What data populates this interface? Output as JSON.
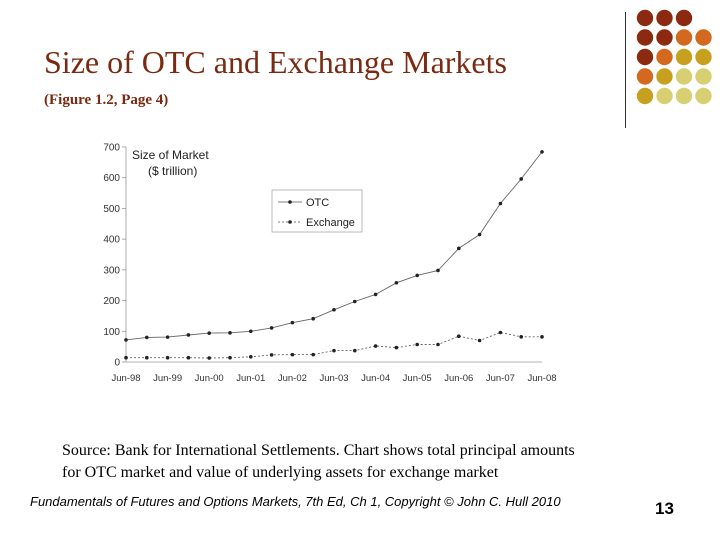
{
  "slide": {
    "title": "Size of OTC and Exchange Markets",
    "subtitle": "(Figure 1.2, Page 4)",
    "source_line1": "Source: Bank for International Settlements. Chart shows total principal amounts",
    "source_line2": "for OTC market and value of underlying assets for exchange market",
    "footer": "Fundamentals of Futures and Options Markets, 7th Ed, Ch 1, Copyright © John C. Hull 2010",
    "page_number": "13"
  },
  "colors": {
    "title": "#7a2a10",
    "dot_dark": "#8b2a10",
    "dot_orange": "#d2691e",
    "dot_gold": "#c8a020",
    "dot_light": "#d8cf72"
  },
  "decoration": {
    "dot_grid": [
      [
        "dot_dark",
        "dot_dark",
        "dot_dark",
        null
      ],
      [
        "dot_dark",
        "dot_dark",
        "dot_orange",
        "dot_orange"
      ],
      [
        "dot_dark",
        "dot_orange",
        "dot_gold",
        "dot_gold"
      ],
      [
        "dot_orange",
        "dot_gold",
        "dot_light",
        "dot_light"
      ],
      [
        "dot_gold",
        "dot_light",
        "dot_light",
        "dot_light"
      ]
    ]
  },
  "chart_data": {
    "type": "line",
    "title": "Size of Market",
    "subtitle": "($ trillion)",
    "xlabel": "",
    "ylabel": "",
    "ylim": [
      0,
      700
    ],
    "yticks": [
      0,
      100,
      200,
      300,
      400,
      500,
      600,
      700
    ],
    "x_tick_labels": [
      "Jun-98",
      "Jun-99",
      "Jun-00",
      "Jun-01",
      "Jun-02",
      "Jun-03",
      "Jun-04",
      "Jun-05",
      "Jun-06",
      "Jun-07",
      "Jun-08"
    ],
    "x": [
      1998.5,
      1999.0,
      1999.5,
      2000.0,
      2000.5,
      2001.0,
      2001.5,
      2002.0,
      2002.5,
      2003.0,
      2003.5,
      2004.0,
      2004.5,
      2005.0,
      2005.5,
      2006.0,
      2006.5,
      2007.0,
      2007.5,
      2008.0,
      2008.5
    ],
    "series": [
      {
        "name": "OTC",
        "values": [
          72,
          80,
          81,
          88,
          94,
          95,
          100,
          111,
          128,
          141,
          170,
          197,
          220,
          258,
          282,
          298,
          370,
          415,
          516,
          596,
          684
        ]
      },
      {
        "name": "Exchange",
        "values": [
          14,
          14,
          14,
          14,
          13,
          14,
          17,
          23,
          24,
          24,
          37,
          37,
          52,
          47,
          57,
          57,
          84,
          70,
          96,
          82,
          82
        ]
      }
    ],
    "legend_position": "top-center",
    "grid": false
  }
}
